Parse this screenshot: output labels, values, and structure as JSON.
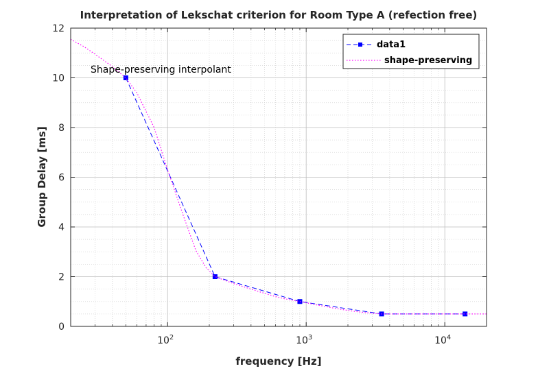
{
  "chart_data": {
    "type": "line",
    "title": "Interpretation of Lekschat criterion for Room Type A (refection free)",
    "xlabel": "frequency [Hz]",
    "ylabel": "Group Delay [ms]",
    "xscale": "log",
    "xlim": [
      20,
      20000
    ],
    "ylim": [
      0,
      12
    ],
    "grid": true,
    "minor_grid": true,
    "legend_position": "top-right",
    "annotation": "Shape-preserving interpolant",
    "x_ticks": [
      {
        "value": 100,
        "base": "10",
        "exp": "2"
      },
      {
        "value": 1000,
        "base": "10",
        "exp": "3"
      },
      {
        "value": 10000,
        "base": "10",
        "exp": "4"
      }
    ],
    "y_ticks": [
      0,
      2,
      4,
      6,
      8,
      10,
      12
    ],
    "series": [
      {
        "name": "data1",
        "style": "dashed-square-markers",
        "color": "#0000ff",
        "x": [
          50,
          220,
          900,
          3500,
          14000
        ],
        "y": [
          10,
          2,
          1,
          0.5,
          0.5
        ]
      },
      {
        "name": "shape-preserving",
        "style": "dotted",
        "color": "#ff00ff",
        "x": [
          20,
          25,
          30,
          40,
          50,
          60,
          80,
          100,
          130,
          160,
          190,
          220,
          300,
          400,
          500,
          600,
          700,
          900,
          1200,
          1600,
          2000,
          2500,
          3000,
          3500,
          5000,
          8000,
          14000,
          20000
        ],
        "y": [
          11.55,
          11.25,
          10.95,
          10.45,
          10.0,
          9.4,
          8.0,
          6.3,
          4.45,
          3.05,
          2.35,
          2.0,
          1.72,
          1.5,
          1.33,
          1.2,
          1.11,
          1.0,
          0.86,
          0.73,
          0.64,
          0.57,
          0.53,
          0.5,
          0.5,
          0.5,
          0.5,
          0.5
        ]
      }
    ]
  }
}
